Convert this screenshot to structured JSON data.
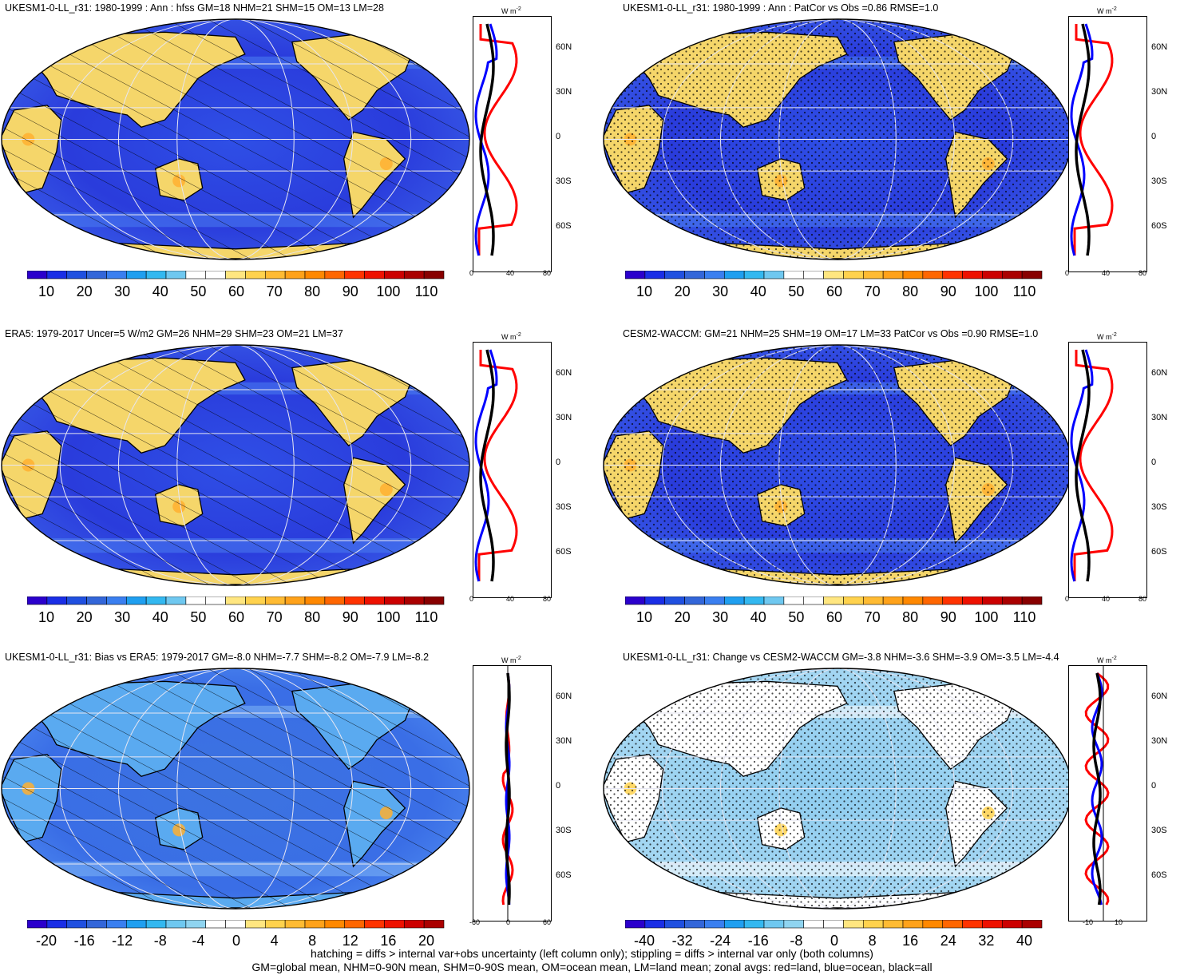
{
  "panels": [
    {
      "title": "UKESM1-0-LL_r31: 1980-1999 : Ann : hfss GM=18 NHM=21 SHM=15 OM=13 LM=28",
      "scale": "abs",
      "hatch": "hatch"
    },
    {
      "title": "UKESM1-0-LL_r31: 1980-1999 : Ann : PatCor vs Obs =0.86 RMSE=1.0",
      "scale": "abs",
      "hatch": "dots"
    },
    {
      "title": "ERA5: 1979-2017 Uncer=5 W/m2 GM=26 NHM=29 SHM=23 OM=21 LM=37",
      "scale": "abs",
      "hatch": "hatch"
    },
    {
      "title": "CESM2-WACCM: GM=21 NHM=25 SHM=19 OM=17 LM=33 PatCor vs Obs =0.90 RMSE=1.0",
      "scale": "abs",
      "hatch": "dots"
    },
    {
      "title": "UKESM1-0-LL_r31: Bias vs ERA5: 1979-2017 GM=-8.0 NHM=-7.7 SHM=-8.2 OM=-7.9 LM=-8.2",
      "scale": "bias",
      "hatch": "hatch"
    },
    {
      "title": "UKESM1-0-LL_r31: Change vs CESM2-WACCM GM=-3.8 NHM=-3.6 SHM=-3.9 OM=-3.5 LM=-4.4",
      "scale": "change",
      "hatch": "dots"
    }
  ],
  "colorbars": {
    "abs": [
      "10",
      "20",
      "30",
      "40",
      "50",
      "60",
      "70",
      "80",
      "90",
      "100",
      "110"
    ],
    "bias": [
      "-20",
      "-16",
      "-12",
      "-8",
      "-4",
      "0",
      "4",
      "8",
      "12",
      "16",
      "20"
    ],
    "change": [
      "-40",
      "-32",
      "-24",
      "-16",
      "-8",
      "0",
      "8",
      "16",
      "24",
      "32",
      "40"
    ]
  },
  "zonal": {
    "units": "W m",
    "units_exp": "-2",
    "lat_labels": [
      "60N",
      "30N",
      "0",
      "30S",
      "60S"
    ],
    "axes": {
      "abs": [
        "0",
        "40",
        "80"
      ],
      "bias": [
        "-60",
        "0",
        "60"
      ],
      "change": [
        "-10",
        "10"
      ]
    },
    "colors": {
      "land": "#ff0000",
      "ocean": "#0000ff",
      "all": "#000000"
    }
  },
  "footer": {
    "line1": "hatching = diffs > internal var+obs uncertainty (left column only); stippling = diffs > internal var only (both columns)",
    "line2": "GM=global mean, NHM=0-90N mean, SHM=0-90S mean, OM=ocean mean, LM=land mean; zonal avgs: red=land, blue=ocean, black=all"
  },
  "palettes": {
    "abs": [
      "#2b00cc",
      "#1a2ee6",
      "#2050e0",
      "#3366d9",
      "#3a7ff0",
      "#1f9ff0",
      "#33b8f0",
      "#6fc8f0",
      "#ffffff",
      "#ffffff",
      "#ffe680",
      "#ffd24d",
      "#ffbb33",
      "#ffa21a",
      "#ff8800",
      "#ff6600",
      "#ff3300",
      "#ee1100",
      "#cc0000",
      "#aa0000",
      "#880000"
    ],
    "div": [
      "#2b00cc",
      "#1a2ee6",
      "#2050e0",
      "#3366d9",
      "#3a7ff0",
      "#1f9ff0",
      "#33b8f0",
      "#6fc8f0",
      "#8fd4f0",
      "#ffffff",
      "#ffffff",
      "#ffe680",
      "#ffd24d",
      "#ffbb33",
      "#ffa21a",
      "#ff8800",
      "#ff6600",
      "#ff3300",
      "#ee1100",
      "#cc0000",
      "#aa0000"
    ]
  }
}
